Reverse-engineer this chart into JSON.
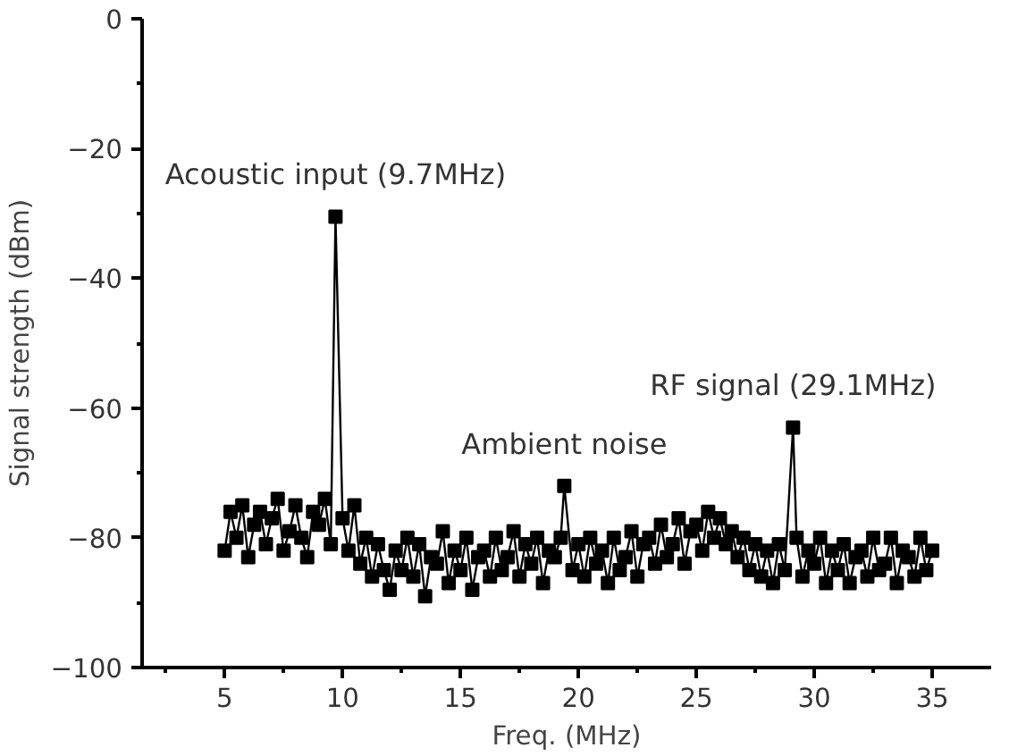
{
  "chart_data": {
    "type": "line",
    "xlabel": "Freq. (MHz)",
    "ylabel": "Signal strength (dBm)",
    "xlim": [
      1.5,
      37.5
    ],
    "ylim": [
      -100,
      0
    ],
    "xticks": [
      {
        "value": 2.5,
        "label": null
      },
      5,
      {
        "value": 7.5,
        "label": null
      },
      10,
      {
        "value": 12.5,
        "label": null
      },
      15,
      {
        "value": 17.5,
        "label": null
      },
      20,
      {
        "value": 22.5,
        "label": null
      },
      25,
      {
        "value": 27.5,
        "label": null
      },
      30,
      {
        "value": 32.5,
        "label": null
      },
      35
    ],
    "yticks": [
      -100,
      {
        "value": -90,
        "label": null
      },
      -80,
      {
        "value": -70,
        "label": null
      },
      -60,
      {
        "value": -50,
        "label": null
      },
      -40,
      {
        "value": -30,
        "label": null
      },
      -20,
      {
        "value": -10,
        "label": null
      },
      0
    ],
    "grid": false,
    "marker": "square",
    "line_style": "solid",
    "x": [
      5.0,
      5.25,
      5.5,
      5.75,
      6.0,
      6.25,
      6.5,
      6.75,
      7.0,
      7.25,
      7.5,
      7.75,
      8.0,
      8.25,
      8.5,
      8.75,
      9.0,
      9.25,
      9.5,
      9.7,
      10.0,
      10.25,
      10.5,
      10.75,
      11.0,
      11.25,
      11.5,
      11.75,
      12.0,
      12.25,
      12.5,
      12.75,
      13.0,
      13.25,
      13.5,
      13.75,
      14.0,
      14.25,
      14.5,
      14.75,
      15.0,
      15.25,
      15.5,
      15.75,
      16.0,
      16.25,
      16.5,
      16.75,
      17.0,
      17.25,
      17.5,
      17.75,
      18.0,
      18.25,
      18.5,
      18.75,
      19.0,
      19.25,
      19.4,
      19.75,
      20.0,
      20.25,
      20.5,
      20.75,
      21.0,
      21.25,
      21.5,
      21.75,
      22.0,
      22.25,
      22.5,
      22.75,
      23.0,
      23.25,
      23.5,
      23.75,
      24.0,
      24.25,
      24.5,
      24.75,
      25.0,
      25.25,
      25.5,
      25.75,
      26.0,
      26.25,
      26.5,
      26.75,
      27.0,
      27.25,
      27.5,
      27.75,
      28.0,
      28.25,
      28.5,
      28.75,
      29.1,
      29.25,
      29.5,
      29.75,
      30.0,
      30.25,
      30.5,
      30.75,
      31.0,
      31.25,
      31.5,
      31.75,
      32.0,
      32.25,
      32.5,
      32.75,
      33.0,
      33.25,
      33.5,
      33.75,
      34.0,
      34.25,
      34.5,
      34.75,
      35.0
    ],
    "series": [
      {
        "color": "#000000",
        "values": [
          -82,
          -76,
          -80,
          -75,
          -83,
          -78,
          -76,
          -81,
          -77,
          -74,
          -82,
          -79,
          -75,
          -80,
          -83,
          -76,
          -78,
          -74,
          -81,
          -30.5,
          -77,
          -82,
          -75,
          -84,
          -80,
          -86,
          -81,
          -85,
          -88,
          -82,
          -85,
          -80,
          -86,
          -81,
          -89,
          -83,
          -84,
          -79,
          -87,
          -82,
          -85,
          -80,
          -88,
          -83,
          -82,
          -86,
          -80,
          -85,
          -83,
          -79,
          -86,
          -81,
          -84,
          -80,
          -87,
          -82,
          -83,
          -80,
          -72,
          -85,
          -81,
          -86,
          -80,
          -84,
          -82,
          -87,
          -80,
          -85,
          -83,
          -79,
          -86,
          -81,
          -80,
          -84,
          -78,
          -83,
          -81,
          -77,
          -84,
          -79,
          -78,
          -82,
          -76,
          -80,
          -77,
          -81,
          -79,
          -83,
          -80,
          -85,
          -81,
          -86,
          -82,
          -87,
          -81,
          -85,
          -63,
          -80,
          -86,
          -82,
          -84,
          -80,
          -87,
          -82,
          -85,
          -81,
          -87,
          -83,
          -82,
          -86,
          -80,
          -85,
          -84,
          -80,
          -87,
          -82,
          -83,
          -86,
          -80,
          -85,
          -82
        ]
      }
    ],
    "annotations": [
      {
        "text": "Acoustic input (9.7MHz)",
        "x": 9.7,
        "y": -30.5
      },
      {
        "text": "Ambient noise",
        "x": 19.4,
        "y": -72
      },
      {
        "text": "RF signal (29.1MHz)",
        "x": 29.1,
        "y": -63
      }
    ]
  }
}
